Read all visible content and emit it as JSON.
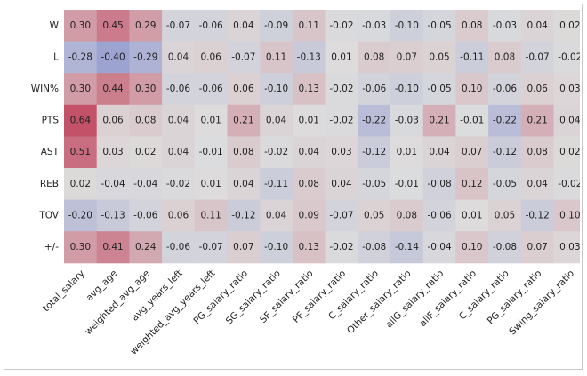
{
  "chart_data": {
    "type": "heatmap",
    "categories": [
      "total_salary",
      "avg_age",
      "weighted_avg_age",
      "avg_years_left",
      "weighted_avg_years_left",
      "PG_salary_ratio",
      "SG_salary_ratio",
      "SF_salary_ratio",
      "PF_salary_ratio",
      "C_salary_ratio",
      "Other_salary_ratio",
      "allG_salary_ratio",
      "allF_salary_ratio",
      "C_salary_ratio",
      "PG_salary_ratio",
      "Swing_salary_ratio"
    ],
    "series": [
      {
        "name": "W",
        "values": [
          0.3,
          0.45,
          0.29,
          -0.07,
          -0.06,
          0.04,
          -0.09,
          0.11,
          -0.02,
          -0.03,
          -0.1,
          -0.05,
          0.08,
          -0.03,
          0.04,
          0.02
        ],
        "value_labels": [
          "0.30",
          "0.45",
          "0.29",
          "-0.07",
          "-0.06",
          "0.04",
          "-0.09",
          "0.11",
          "-0.02",
          "-0.03",
          "-0.10",
          "-0.05",
          "0.08",
          "-0.03",
          "0.04",
          "0.02"
        ]
      },
      {
        "name": "L",
        "values": [
          -0.28,
          -0.4,
          -0.29,
          0.04,
          0.06,
          -0.07,
          0.11,
          -0.13,
          0.01,
          0.08,
          0.07,
          0.05,
          -0.11,
          0.08,
          -0.07,
          -0.02
        ],
        "value_labels": [
          "-0.28",
          "-0.40",
          "-0.29",
          "0.04",
          "0.06",
          "-0.07",
          "0.11",
          "-0.13",
          "0.01",
          "0.08",
          "0.07",
          "0.05",
          "-0.11",
          "0.08",
          "-0.07",
          "-0.02"
        ]
      },
      {
        "name": "WIN%",
        "values": [
          0.3,
          0.44,
          0.3,
          -0.06,
          -0.06,
          0.06,
          -0.1,
          0.13,
          -0.02,
          -0.06,
          -0.1,
          -0.05,
          0.1,
          -0.06,
          0.06,
          0.03
        ],
        "value_labels": [
          "0.30",
          "0.44",
          "0.30",
          "-0.06",
          "-0.06",
          "0.06",
          "-0.10",
          "0.13",
          "-0.02",
          "-0.06",
          "-0.10",
          "-0.05",
          "0.10",
          "-0.06",
          "0.06",
          "0.03"
        ]
      },
      {
        "name": "PTS",
        "values": [
          0.64,
          0.06,
          0.08,
          0.04,
          0.01,
          0.21,
          0.04,
          0.01,
          -0.02,
          -0.22,
          -0.03,
          0.21,
          -0.01,
          -0.22,
          0.21,
          0.04
        ],
        "value_labels": [
          "0.64",
          "0.06",
          "0.08",
          "0.04",
          "0.01",
          "0.21",
          "0.04",
          "0.01",
          "-0.02",
          "-0.22",
          "-0.03",
          "0.21",
          "-0.01",
          "-0.22",
          "0.21",
          "0.04"
        ]
      },
      {
        "name": "AST",
        "values": [
          0.51,
          0.03,
          0.02,
          0.04,
          -0.01,
          0.08,
          -0.02,
          0.04,
          0.03,
          -0.12,
          0.01,
          0.04,
          0.07,
          -0.12,
          0.08,
          0.02
        ],
        "value_labels": [
          "0.51",
          "0.03",
          "0.02",
          "0.04",
          "-0.01",
          "0.08",
          "-0.02",
          "0.04",
          "0.03",
          "-0.12",
          "0.01",
          "0.04",
          "0.07",
          "-0.12",
          "0.08",
          "0.02"
        ]
      },
      {
        "name": "REB",
        "values": [
          0.02,
          -0.04,
          -0.04,
          -0.02,
          0.01,
          0.04,
          -0.11,
          0.08,
          0.04,
          -0.05,
          -0.01,
          -0.08,
          0.12,
          -0.05,
          0.04,
          -0.02
        ],
        "value_labels": [
          "0.02",
          "-0.04",
          "-0.04",
          "-0.02",
          "0.01",
          "0.04",
          "-0.11",
          "0.08",
          "0.04",
          "-0.05",
          "-0.01",
          "-0.08",
          "0.12",
          "-0.05",
          "0.04",
          "-0.02"
        ]
      },
      {
        "name": "TOV",
        "values": [
          -0.2,
          -0.13,
          -0.06,
          0.06,
          0.11,
          -0.12,
          0.04,
          0.09,
          -0.07,
          0.05,
          0.08,
          -0.06,
          0.01,
          0.05,
          -0.12,
          0.1
        ],
        "value_labels": [
          "-0.20",
          "-0.13",
          "-0.06",
          "0.06",
          "0.11",
          "-0.12",
          "0.04",
          "0.09",
          "-0.07",
          "0.05",
          "0.08",
          "-0.06",
          "0.01",
          "0.05",
          "-0.12",
          "0.10"
        ]
      },
      {
        "name": "+/-",
        "values": [
          0.3,
          0.41,
          0.24,
          -0.06,
          -0.07,
          0.07,
          -0.1,
          0.13,
          -0.02,
          -0.08,
          -0.14,
          -0.04,
          0.1,
          -0.08,
          0.07,
          0.03
        ],
        "value_labels": [
          "0.30",
          "0.41",
          "0.24",
          "-0.06",
          "-0.07",
          "0.07",
          "-0.10",
          "0.13",
          "-0.02",
          "-0.08",
          "-0.14",
          "-0.04",
          "0.10",
          "-0.08",
          "0.07",
          "0.03"
        ]
      }
    ],
    "color_range": [
      -1,
      1
    ],
    "colors": {
      "low": "#3b4cc0",
      "mid": "#dddddd",
      "high": "#b40426"
    }
  }
}
